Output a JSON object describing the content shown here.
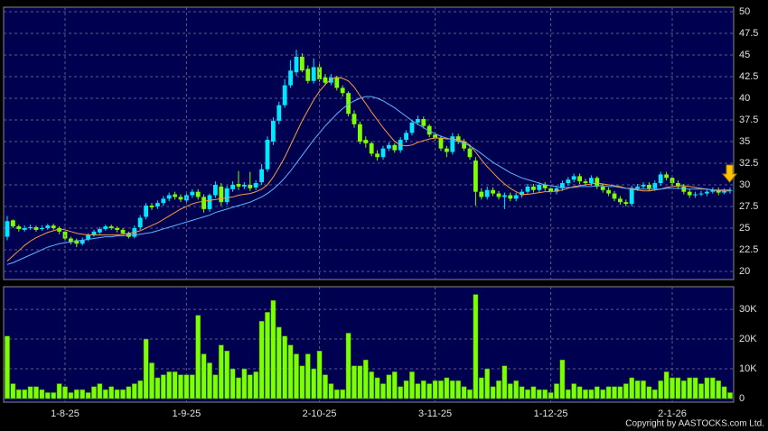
{
  "chart_data": [
    {
      "type": "candlestick",
      "open": [
        24.0,
        25.9,
        25.2,
        24.8,
        25.0,
        25.1,
        24.9,
        25.0,
        25.3,
        25.0,
        24.6,
        23.8,
        23.6,
        23.2,
        23.7,
        24.2,
        24.5,
        24.9,
        25.2,
        25.0,
        24.8,
        24.4,
        24.0,
        25.1,
        26.3,
        27.6,
        27.5,
        27.9,
        28.4,
        28.9,
        28.6,
        28.2,
        28.8,
        29.2,
        28.6,
        27.2,
        28.8,
        29.8,
        28.0,
        29.5,
        30.1,
        29.8,
        30.0,
        29.7,
        30.3,
        31.8,
        35.0,
        37.4,
        39.2,
        41.5,
        43.0,
        44.8,
        43.4,
        42.0,
        43.6,
        42.4,
        41.8,
        42.4,
        41.2,
        40.6,
        38.2,
        37.0,
        35.2,
        34.8,
        33.6,
        33.2,
        34.2,
        34.6,
        34.0,
        35.2,
        36.0,
        37.2,
        37.6,
        36.8,
        35.8,
        35.4,
        34.2,
        33.8,
        35.6,
        35.0,
        34.2,
        32.8,
        29.2,
        28.6,
        29.4,
        29.0,
        28.6,
        28.8,
        28.4,
        28.8,
        29.2,
        29.8,
        29.4,
        30.0,
        29.6,
        29.2,
        29.6,
        30.2,
        30.6,
        31.0,
        30.4,
        30.2,
        30.8,
        29.8,
        29.4,
        29.0,
        28.4,
        28.0,
        27.8,
        29.6,
        29.8,
        30.0,
        29.6,
        30.2,
        31.2,
        30.8,
        30.2,
        29.8,
        29.2,
        28.8,
        28.9,
        29.0,
        29.2,
        29.4,
        29.1,
        29.3
      ],
      "high": [
        26.4,
        26.0,
        25.4,
        25.3,
        25.4,
        25.3,
        25.3,
        25.5,
        25.5,
        25.2,
        24.8,
        24.0,
        23.8,
        23.9,
        24.4,
        24.8,
        25.1,
        25.4,
        25.4,
        25.2,
        25.0,
        24.6,
        25.3,
        26.5,
        27.9,
        27.9,
        28.2,
        28.7,
        29.1,
        29.2,
        28.9,
        29.1,
        29.5,
        29.5,
        28.9,
        29.0,
        30.4,
        30.2,
        29.9,
        30.4,
        31.6,
        30.3,
        31.5,
        30.5,
        32.4,
        35.6,
        37.8,
        39.6,
        42.2,
        44.4,
        45.6,
        45.2,
        43.8,
        44.6,
        44.0,
        42.8,
        42.8,
        42.6,
        41.5,
        40.8,
        38.6,
        37.3,
        35.6,
        35.0,
        34.0,
        34.5,
        34.9,
        34.8,
        35.5,
        36.3,
        37.5,
        38.0,
        37.9,
        37.0,
        36.1,
        35.7,
        34.5,
        36.0,
        35.9,
        35.3,
        34.5,
        33.2,
        29.6,
        29.8,
        29.7,
        29.3,
        29.1,
        29.1,
        29.1,
        29.5,
        30.1,
        30.1,
        30.3,
        30.3,
        29.9,
        29.9,
        30.5,
        30.9,
        31.3,
        31.3,
        30.7,
        31.1,
        31.0,
        30.1,
        29.7,
        29.3,
        28.7,
        28.3,
        29.9,
        30.1,
        30.3,
        30.3,
        30.5,
        31.5,
        31.5,
        31.1,
        30.5,
        30.1,
        29.5,
        29.2,
        29.3,
        29.5,
        29.7,
        29.7,
        29.6,
        29.7
      ],
      "low": [
        23.6,
        25.0,
        24.6,
        24.6,
        24.8,
        24.6,
        24.7,
        24.8,
        24.8,
        24.3,
        23.5,
        23.1,
        22.8,
        23.0,
        23.5,
        24.0,
        24.3,
        24.7,
        24.8,
        24.5,
        24.2,
        23.8,
        23.8,
        24.8,
        26.0,
        27.1,
        27.2,
        27.6,
        28.1,
        28.3,
        28.0,
        27.9,
        28.5,
        28.3,
        26.8,
        26.9,
        28.5,
        27.6,
        27.7,
        29.2,
        29.4,
        29.5,
        29.3,
        29.4,
        30.0,
        31.5,
        34.6,
        37.0,
        38.9,
        41.2,
        42.6,
        43.0,
        41.7,
        41.7,
        41.9,
        41.5,
        41.5,
        40.9,
        40.2,
        37.9,
        36.6,
        34.7,
        34.3,
        33.3,
        32.8,
        32.9,
        33.9,
        33.7,
        33.7,
        34.9,
        35.7,
        36.9,
        36.5,
        35.5,
        35.1,
        33.9,
        33.2,
        33.5,
        34.7,
        33.9,
        32.9,
        27.6,
        28.3,
        28.3,
        28.7,
        28.3,
        27.2,
        28.1,
        28.1,
        28.5,
        28.9,
        29.1,
        29.1,
        29.3,
        28.9,
        28.9,
        29.3,
        29.9,
        30.3,
        30.1,
        29.9,
        29.9,
        29.5,
        29.1,
        28.7,
        28.1,
        27.7,
        27.5,
        27.5,
        29.3,
        29.5,
        29.3,
        29.3,
        29.9,
        30.5,
        29.9,
        29.5,
        28.9,
        28.5,
        28.5,
        28.7,
        28.7,
        29.0,
        28.8,
        28.9,
        29.0
      ],
      "close": [
        25.8,
        25.2,
        24.9,
        25.0,
        25.1,
        24.8,
        25.0,
        25.3,
        25.0,
        24.6,
        23.8,
        23.4,
        23.2,
        23.6,
        24.2,
        24.6,
        24.9,
        25.2,
        25.0,
        24.8,
        24.4,
        24.0,
        25.0,
        26.2,
        27.6,
        27.4,
        27.9,
        28.4,
        28.8,
        28.6,
        28.3,
        28.8,
        29.2,
        28.6,
        27.2,
        28.8,
        30.0,
        28.0,
        29.6,
        30.0,
        29.8,
        30.0,
        29.6,
        30.2,
        31.8,
        35.2,
        37.4,
        39.2,
        41.5,
        43.2,
        44.8,
        43.2,
        42.0,
        43.6,
        42.2,
        41.8,
        42.4,
        41.2,
        40.6,
        38.2,
        37.0,
        35.0,
        34.8,
        33.6,
        33.2,
        34.2,
        34.6,
        34.0,
        35.2,
        36.0,
        37.2,
        37.6,
        36.8,
        35.8,
        35.4,
        34.2,
        33.8,
        35.6,
        35.0,
        34.2,
        33.2,
        29.2,
        28.6,
        29.4,
        29.0,
        28.6,
        28.8,
        28.4,
        28.8,
        29.2,
        29.8,
        29.4,
        30.0,
        29.6,
        29.2,
        29.6,
        30.2,
        30.6,
        31.0,
        30.4,
        30.2,
        30.8,
        29.8,
        29.4,
        29.0,
        28.4,
        28.0,
        27.8,
        29.6,
        29.8,
        30.0,
        29.6,
        30.2,
        31.2,
        30.8,
        30.2,
        29.8,
        29.2,
        28.8,
        28.9,
        29.0,
        29.2,
        29.4,
        29.1,
        29.3,
        29.4
      ],
      "up_color": "#00e8ff",
      "down_color": "#7cff00",
      "series": [
        {
          "color": "#ff9a3c",
          "values": [
            21.2,
            21.8,
            22.4,
            23.0,
            23.5,
            23.9,
            24.2,
            24.5,
            24.7,
            24.9,
            24.8,
            24.6,
            24.4,
            24.3,
            24.2,
            24.2,
            24.2,
            24.2,
            24.2,
            24.2,
            24.3,
            24.4,
            24.5,
            24.7,
            25.0,
            25.3,
            25.6,
            26.0,
            26.4,
            26.8,
            27.2,
            27.5,
            27.8,
            28.0,
            28.1,
            28.2,
            28.3,
            28.4,
            28.5,
            28.6,
            28.8,
            28.9,
            29.0,
            29.2,
            29.5,
            30.0,
            30.9,
            32.0,
            33.2,
            34.6,
            36.0,
            37.4,
            38.6,
            39.8,
            40.8,
            41.6,
            42.2,
            42.4,
            42.3,
            42.0,
            41.3,
            40.3,
            39.4,
            38.4,
            37.5,
            36.6,
            35.8,
            35.0,
            34.6,
            34.5,
            34.6,
            34.9,
            35.1,
            35.3,
            35.4,
            35.4,
            35.3,
            35.3,
            35.2,
            35.0,
            34.6,
            33.8,
            32.9,
            32.1,
            31.4,
            30.7,
            30.1,
            29.6,
            29.2,
            28.9,
            28.9,
            29.0,
            29.1,
            29.2,
            29.2,
            29.3,
            29.4,
            29.6,
            29.8,
            29.9,
            30.0,
            30.1,
            30.2,
            30.1,
            30.0,
            29.9,
            29.8,
            29.6,
            29.5,
            29.4,
            29.3,
            29.3,
            29.4,
            29.5,
            29.7,
            29.8,
            29.9,
            29.9,
            29.8,
            29.7,
            29.6,
            29.5,
            29.4,
            29.3,
            29.3,
            29.3
          ]
        },
        {
          "color": "#5fb4ff",
          "values": [
            20.8,
            21.0,
            21.3,
            21.6,
            21.9,
            22.2,
            22.5,
            22.8,
            23.0,
            23.2,
            23.3,
            23.4,
            23.5,
            23.6,
            23.7,
            23.8,
            23.9,
            24.0,
            24.0,
            24.1,
            24.1,
            24.2,
            24.2,
            24.3,
            24.4,
            24.5,
            24.7,
            24.9,
            25.1,
            25.3,
            25.5,
            25.7,
            25.9,
            26.1,
            26.3,
            26.5,
            26.8,
            27.0,
            27.2,
            27.4,
            27.6,
            27.8,
            28.0,
            28.3,
            28.6,
            29.0,
            29.5,
            30.1,
            30.8,
            31.6,
            32.5,
            33.4,
            34.3,
            35.2,
            36.0,
            36.8,
            37.5,
            38.2,
            38.8,
            39.3,
            39.7,
            40.0,
            40.2,
            40.2,
            40.0,
            39.7,
            39.3,
            38.9,
            38.4,
            37.9,
            37.4,
            37.0,
            36.6,
            36.2,
            35.9,
            35.6,
            35.4,
            35.2,
            35.0,
            34.8,
            34.5,
            34.1,
            33.6,
            33.1,
            32.6,
            32.2,
            31.8,
            31.4,
            31.1,
            30.8,
            30.6,
            30.4,
            30.2,
            30.0,
            29.9,
            29.8,
            29.7,
            29.7,
            29.7,
            29.8,
            29.8,
            29.8,
            29.9,
            29.9,
            29.8,
            29.8,
            29.7,
            29.6,
            29.6,
            29.5,
            29.5,
            29.5,
            29.5,
            29.5,
            29.6,
            29.6,
            29.6,
            29.6,
            29.5,
            29.5,
            29.5,
            29.5,
            29.4,
            29.4,
            29.4,
            29.4
          ]
        }
      ],
      "ylim": [
        19.06,
        50.52
      ],
      "yticks": [
        20,
        22.5,
        25,
        27.5,
        30,
        32.5,
        35,
        37.5,
        40,
        42.5,
        45,
        47.5,
        50
      ],
      "grid": true
    },
    {
      "type": "bar",
      "categories": [
        null,
        null,
        null,
        null,
        null,
        null,
        null,
        null,
        null,
        null,
        "1-8-25",
        null,
        null,
        null,
        null,
        null,
        null,
        null,
        null,
        null,
        null,
        null,
        null,
        null,
        null,
        null,
        null,
        null,
        null,
        null,
        null,
        "1-9-25",
        null,
        null,
        null,
        null,
        null,
        null,
        null,
        null,
        null,
        null,
        null,
        null,
        null,
        null,
        null,
        null,
        null,
        null,
        null,
        null,
        null,
        null,
        "2-10-25",
        null,
        null,
        null,
        null,
        null,
        null,
        null,
        null,
        null,
        null,
        null,
        null,
        null,
        null,
        null,
        null,
        null,
        null,
        null,
        "3-11-25",
        null,
        null,
        null,
        null,
        null,
        null,
        null,
        null,
        null,
        null,
        null,
        null,
        null,
        null,
        null,
        null,
        null,
        null,
        null,
        "1-12-25",
        null,
        null,
        null,
        null,
        null,
        null,
        null,
        null,
        null,
        null,
        null,
        null,
        null,
        null,
        null,
        null,
        null,
        null,
        null,
        null,
        "2-1-26",
        null,
        null,
        null,
        null,
        null,
        null,
        null,
        null,
        null,
        null
      ],
      "values": [
        21000,
        5000,
        3000,
        3000,
        4000,
        4000,
        3000,
        2000,
        2000,
        5000,
        4000,
        2000,
        3000,
        3000,
        2000,
        4000,
        5000,
        3000,
        4000,
        3000,
        3000,
        4000,
        5000,
        6000,
        20000,
        12000,
        7000,
        8000,
        9000,
        9000,
        8000,
        8000,
        8000,
        28000,
        15000,
        12000,
        8000,
        18000,
        16000,
        10000,
        7000,
        10000,
        8000,
        9000,
        26000,
        29000,
        33000,
        24000,
        21000,
        18000,
        15000,
        11000,
        15000,
        10000,
        16000,
        8000,
        5000,
        3000,
        3000,
        22000,
        11000,
        11000,
        13000,
        9000,
        7000,
        5000,
        8000,
        9000,
        4000,
        6000,
        9000,
        5000,
        6000,
        5000,
        6000,
        6000,
        7000,
        6000,
        6000,
        4000,
        3000,
        35000,
        7000,
        10000,
        4000,
        6000,
        11000,
        5000,
        6000,
        4000,
        3000,
        4000,
        3000,
        3000,
        2000,
        5000,
        13000,
        3000,
        5000,
        4000,
        3000,
        3000,
        4000,
        3000,
        4000,
        4000,
        4000,
        5000,
        7000,
        6000,
        6000,
        4000,
        3000,
        6000,
        9000,
        7000,
        7000,
        6000,
        7000,
        7000,
        5000,
        7000,
        7000,
        6000,
        4000,
        2000
      ],
      "color": "#7cff00",
      "ylim": [
        -1200,
        37600
      ],
      "yticks": [
        0,
        {
          "value": 10000,
          "label": "10K"
        },
        {
          "value": 20000,
          "label": "20K"
        },
        {
          "value": 30000,
          "label": "30K"
        }
      ],
      "grid": true,
      "annotation": "Copyright by AASTOCKS.com Ltd."
    }
  ]
}
